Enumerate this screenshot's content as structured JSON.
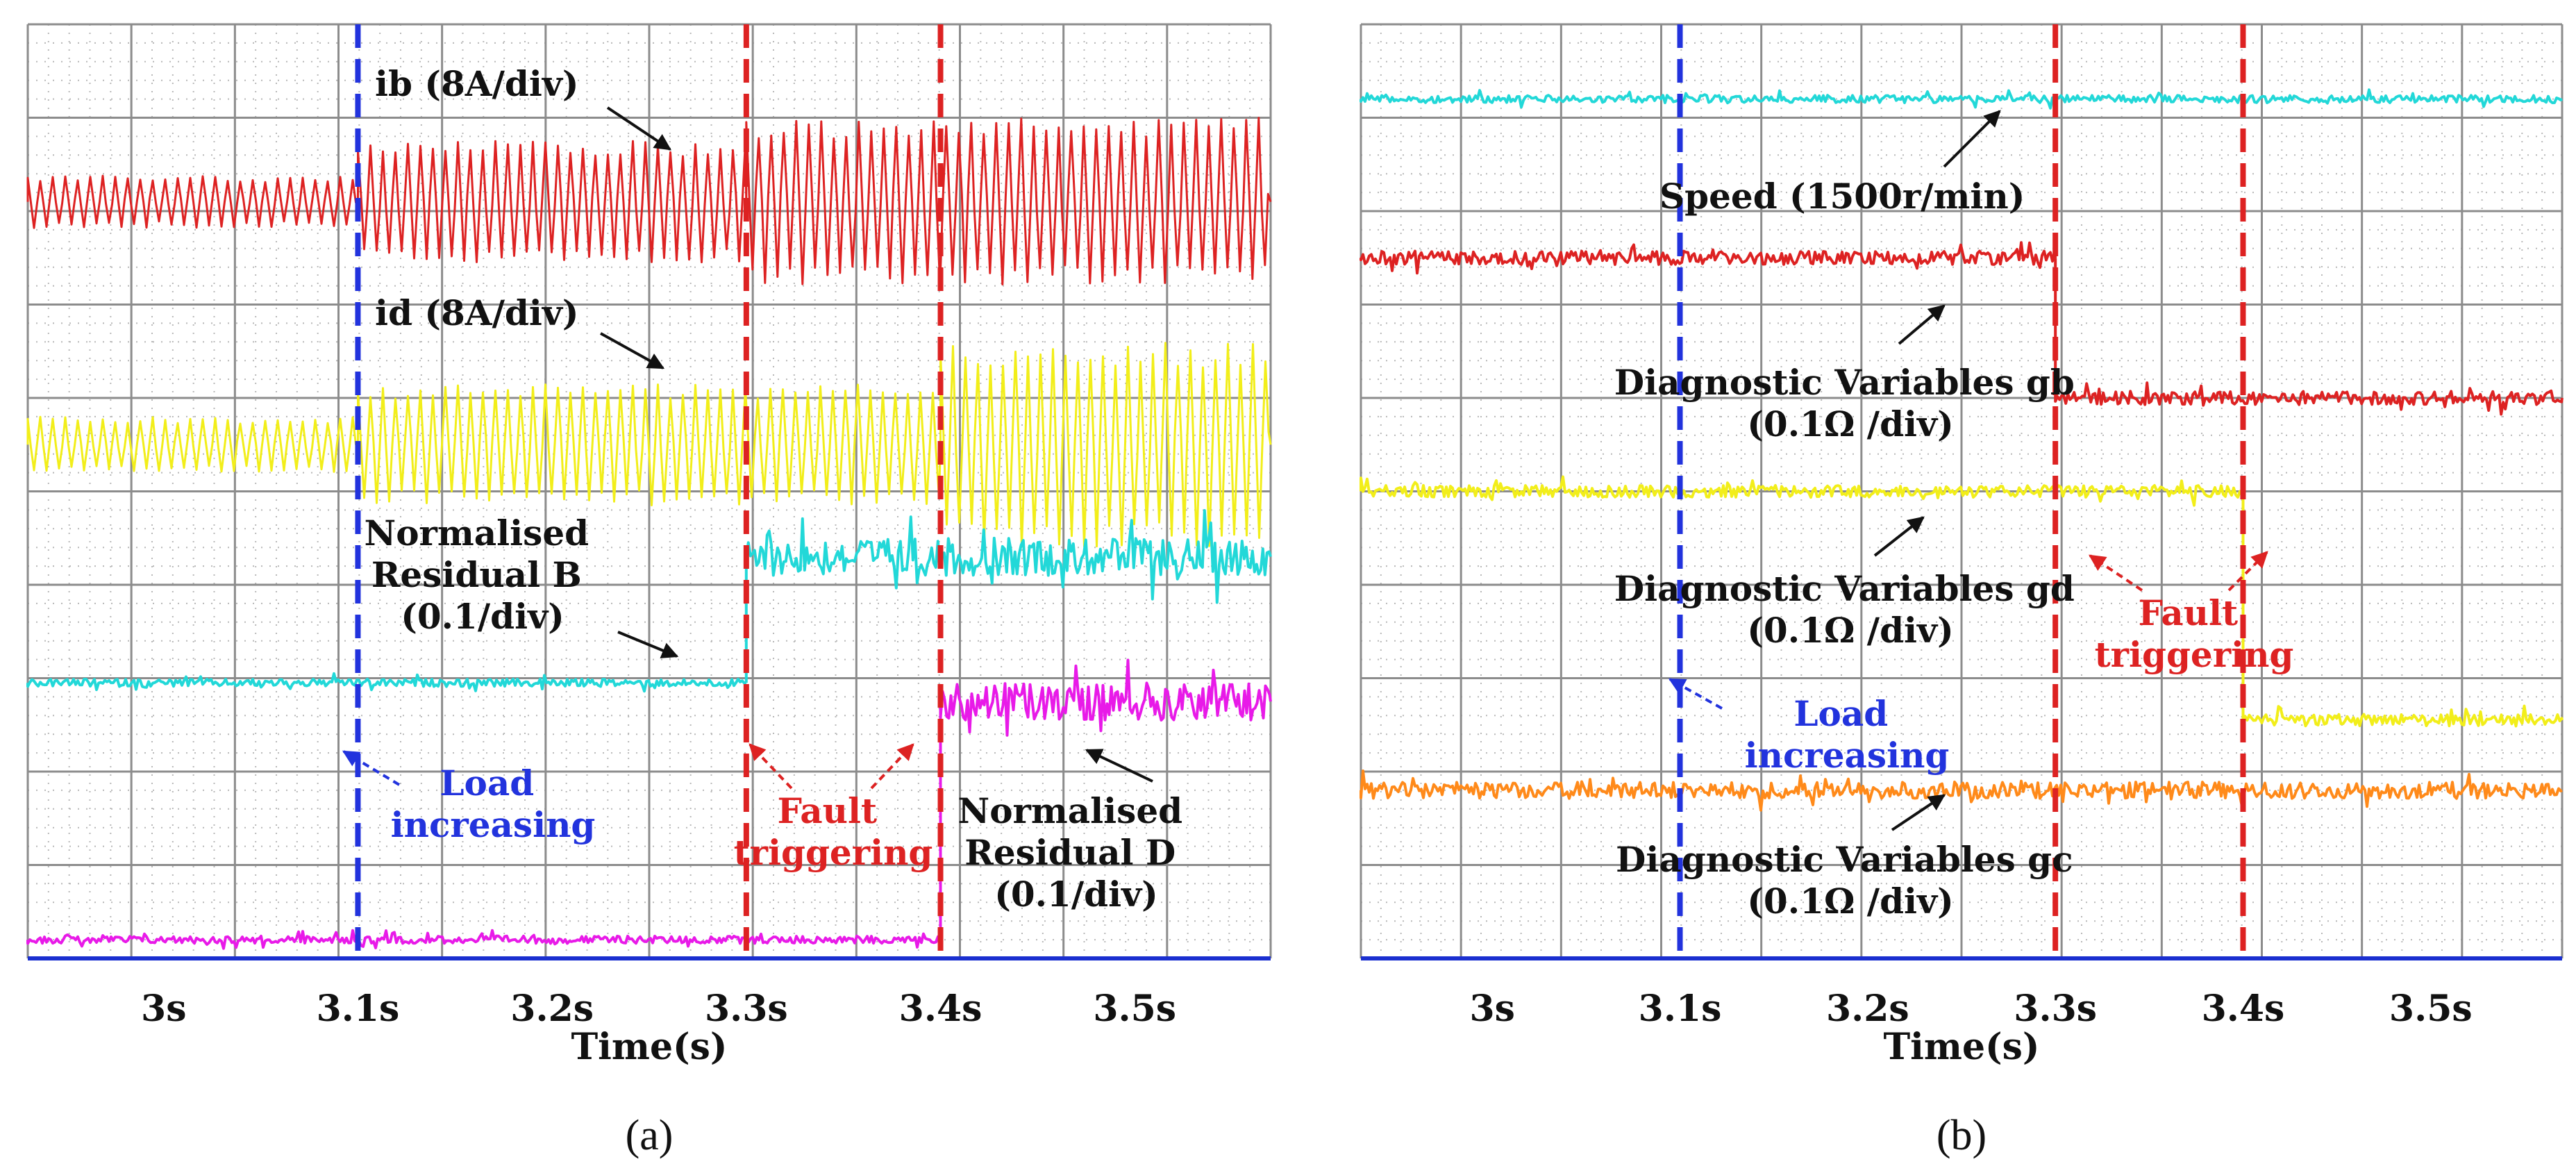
{
  "chart_data": [
    {
      "type": "line",
      "panel_label": "a",
      "xlabel": "Time(s)",
      "xlim": [
        2.93,
        3.57
      ],
      "x_ticks": [
        3.0,
        3.1,
        3.2,
        3.3,
        3.4,
        3.5
      ],
      "x_tick_labels": [
        "3s",
        "3.1s",
        "3.2s",
        "3.3s",
        "3.4s",
        "3.5s"
      ],
      "ylim": [
        0,
        10
      ],
      "grid": true,
      "events": [
        {
          "name": "load-increase",
          "x": 3.1,
          "color": "#2233dd"
        },
        {
          "name": "fault-1",
          "x": 3.3,
          "color": "#dd2222"
        },
        {
          "name": "fault-2",
          "x": 3.4,
          "color": "#dd2222"
        }
      ],
      "series": [
        {
          "name": "ib",
          "label": "ib (8A/div)",
          "color": "#dd2222",
          "style": "oscillation",
          "segments": [
            {
              "from": 2.93,
              "to": 3.1,
              "base": 8.1,
              "amp": 0.28
            },
            {
              "from": 3.1,
              "to": 3.3,
              "base": 8.1,
              "amp": 0.65
            },
            {
              "from": 3.3,
              "to": 3.57,
              "base": 8.1,
              "amp": 0.9
            }
          ]
        },
        {
          "name": "id",
          "label": "id (8A/div)",
          "color": "#f2ee1a",
          "style": "oscillation",
          "segments": [
            {
              "from": 2.93,
              "to": 3.1,
              "base": 5.5,
              "amp": 0.3
            },
            {
              "from": 3.1,
              "to": 3.4,
              "base": 5.5,
              "amp": 0.65
            },
            {
              "from": 3.4,
              "to": 3.57,
              "base": 5.5,
              "amp": 1.1
            }
          ]
        },
        {
          "name": "residual-b",
          "label": "Normalised Residual B (0.1/div)",
          "color": "#22d8d8",
          "style": "noise",
          "segments": [
            {
              "from": 2.93,
              "to": 3.3,
              "base": 2.95,
              "amp": 0.05
            },
            {
              "from": 3.3,
              "to": 3.57,
              "base": 4.3,
              "amp": 0.25
            }
          ]
        },
        {
          "name": "residual-d",
          "label": "Normalised Residual D (0.1/div)",
          "color": "#e81ae8",
          "style": "noise",
          "segments": [
            {
              "from": 2.93,
              "to": 3.4,
              "base": 0.2,
              "amp": 0.05
            },
            {
              "from": 3.4,
              "to": 3.57,
              "base": 2.75,
              "amp": 0.25
            }
          ]
        }
      ]
    },
    {
      "type": "line",
      "panel_label": "b",
      "xlabel": "Time(s)",
      "xlim": [
        2.93,
        3.57
      ],
      "x_ticks": [
        3.0,
        3.1,
        3.2,
        3.3,
        3.4,
        3.5
      ],
      "x_tick_labels": [
        "3s",
        "3.1s",
        "3.2s",
        "3.3s",
        "3.4s",
        "3.5s"
      ],
      "ylim": [
        0,
        10
      ],
      "grid": true,
      "events": [
        {
          "name": "load-increase",
          "x": 3.1,
          "color": "#2233dd"
        },
        {
          "name": "fault-1",
          "x": 3.3,
          "color": "#dd2222"
        },
        {
          "name": "fault-2",
          "x": 3.4,
          "color": "#dd2222"
        }
      ],
      "series": [
        {
          "name": "speed",
          "label": "Speed (1500r/min)",
          "color": "#22d8d8",
          "style": "noise",
          "segments": [
            {
              "from": 2.93,
              "to": 3.57,
              "base": 9.2,
              "amp": 0.05
            }
          ]
        },
        {
          "name": "gb",
          "label": "Diagnostic Variables gb (0.1Ω /div)",
          "color": "#dd2222",
          "style": "noise",
          "segments": [
            {
              "from": 2.93,
              "to": 3.3,
              "base": 7.5,
              "amp": 0.09
            },
            {
              "from": 3.3,
              "to": 3.57,
              "base": 6.0,
              "amp": 0.09
            }
          ]
        },
        {
          "name": "gd",
          "label": "Diagnostic Variables gd (0.1Ω /div)",
          "color": "#f2ee1a",
          "style": "noise",
          "segments": [
            {
              "from": 2.93,
              "to": 3.4,
              "base": 5.0,
              "amp": 0.08
            },
            {
              "from": 3.4,
              "to": 3.57,
              "base": 2.55,
              "amp": 0.08
            }
          ]
        },
        {
          "name": "gc",
          "label": "Diagnostic Variables gc (0.1Ω /div)",
          "color": "#ff8a1a",
          "style": "noise",
          "segments": [
            {
              "from": 2.93,
              "to": 3.57,
              "base": 1.8,
              "amp": 0.11
            }
          ]
        }
      ]
    }
  ],
  "panel_a": {
    "label_ib": "ib (8A/div)",
    "label_id": "id (8A/div)",
    "residual_b": [
      "Normalised",
      "Residual B",
      "(0.1/div)"
    ],
    "residual_d": [
      "Normalised",
      "Residual D",
      "(0.1/div)"
    ],
    "load": [
      "Load",
      "increasing"
    ],
    "fault": [
      "Fault",
      "triggering"
    ],
    "xlabel": "Time(s)",
    "caption": "(a)"
  },
  "panel_b": {
    "speed": "Speed (1500r/min)",
    "gb": [
      "Diagnostic Variables gb",
      "(0.1Ω /div)"
    ],
    "gd": [
      "Diagnostic Variables gd",
      "(0.1Ω /div)"
    ],
    "gc": [
      "Diagnostic Variables gc",
      "(0.1Ω /div)"
    ],
    "load": [
      "Load",
      "increasing"
    ],
    "fault": [
      "Fault",
      "triggering"
    ],
    "xlabel": "Time(s)",
    "caption": "(b)"
  },
  "colors": {
    "grid": "#8c8c8c",
    "minor": "#b8b8b8",
    "axis": "#1a2fd0",
    "text": "#111111",
    "blue": "#2233dd",
    "red": "#dd2222"
  }
}
